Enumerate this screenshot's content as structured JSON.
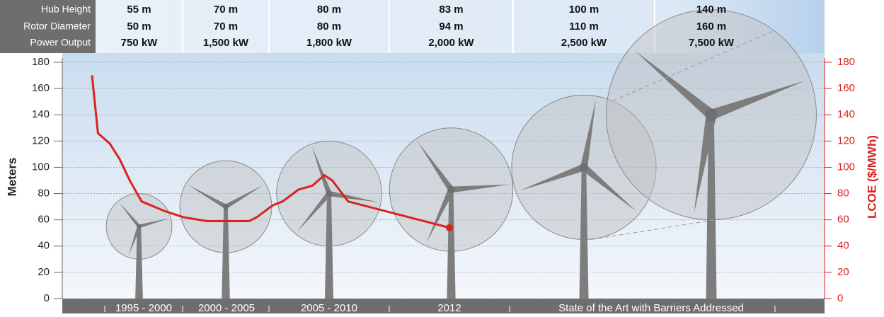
{
  "chart_data": {
    "type": "line",
    "y_label": "Meters",
    "y2_label": "LCOE ($/MWh)",
    "ylim": [
      0,
      180
    ],
    "yticks": [
      0,
      20,
      40,
      60,
      80,
      100,
      120,
      140,
      160,
      180
    ],
    "y2lim": [
      0,
      180
    ],
    "y2ticks": [
      0,
      20,
      40,
      60,
      80,
      100,
      120,
      140,
      160,
      180
    ],
    "grid": true,
    "header_labels": [
      "Hub Height",
      "Rotor Diameter",
      "Power Output"
    ],
    "turbines": [
      {
        "hub_height": 55,
        "hub_height_label": "55 m",
        "rotor_diameter": 50,
        "rotor_diameter_label": "50 m",
        "power_output": "750 kW"
      },
      {
        "hub_height": 70,
        "hub_height_label": "70 m",
        "rotor_diameter": 70,
        "rotor_diameter_label": "70 m",
        "power_output": "1,500 kW"
      },
      {
        "hub_height": 80,
        "hub_height_label": "80 m",
        "rotor_diameter": 80,
        "rotor_diameter_label": "80 m",
        "power_output": "1,800 kW"
      },
      {
        "hub_height": 83,
        "hub_height_label": "83 m",
        "rotor_diameter": 94,
        "rotor_diameter_label": "94 m",
        "power_output": "2,000 kW"
      },
      {
        "hub_height": 100,
        "hub_height_label": "100 m",
        "rotor_diameter": 110,
        "rotor_diameter_label": "110 m",
        "power_output": "2,500 kW"
      },
      {
        "hub_height": 140,
        "hub_height_label": "140 m",
        "rotor_diameter": 160,
        "rotor_diameter_label": "160 m",
        "power_output": "7,500 kW"
      }
    ],
    "categories": [
      "1995 - 2000",
      "2000 - 2005",
      "2005 - 2010",
      "2012",
      "State of the Art with Barriers Addressed"
    ],
    "xlim": [
      1994,
      2013
    ],
    "series": [
      {
        "color": "#d9231e",
        "axis": "y2",
        "x": [
          1994.0,
          1994.3,
          1994.9,
          1995.4,
          1995.9,
          1996.5,
          1997.6,
          1998.6,
          1999.8,
          2001.9,
          2002.3,
          2003.1,
          2003.6,
          2004.4,
          2005.1,
          2005.7,
          2006.1,
          2006.9,
          2012.0
        ],
        "values": [
          170,
          126,
          118,
          106,
          90,
          74,
          67,
          62,
          59,
          59,
          62,
          71,
          74,
          83,
          86,
          94,
          90,
          74,
          54
        ]
      }
    ]
  }
}
